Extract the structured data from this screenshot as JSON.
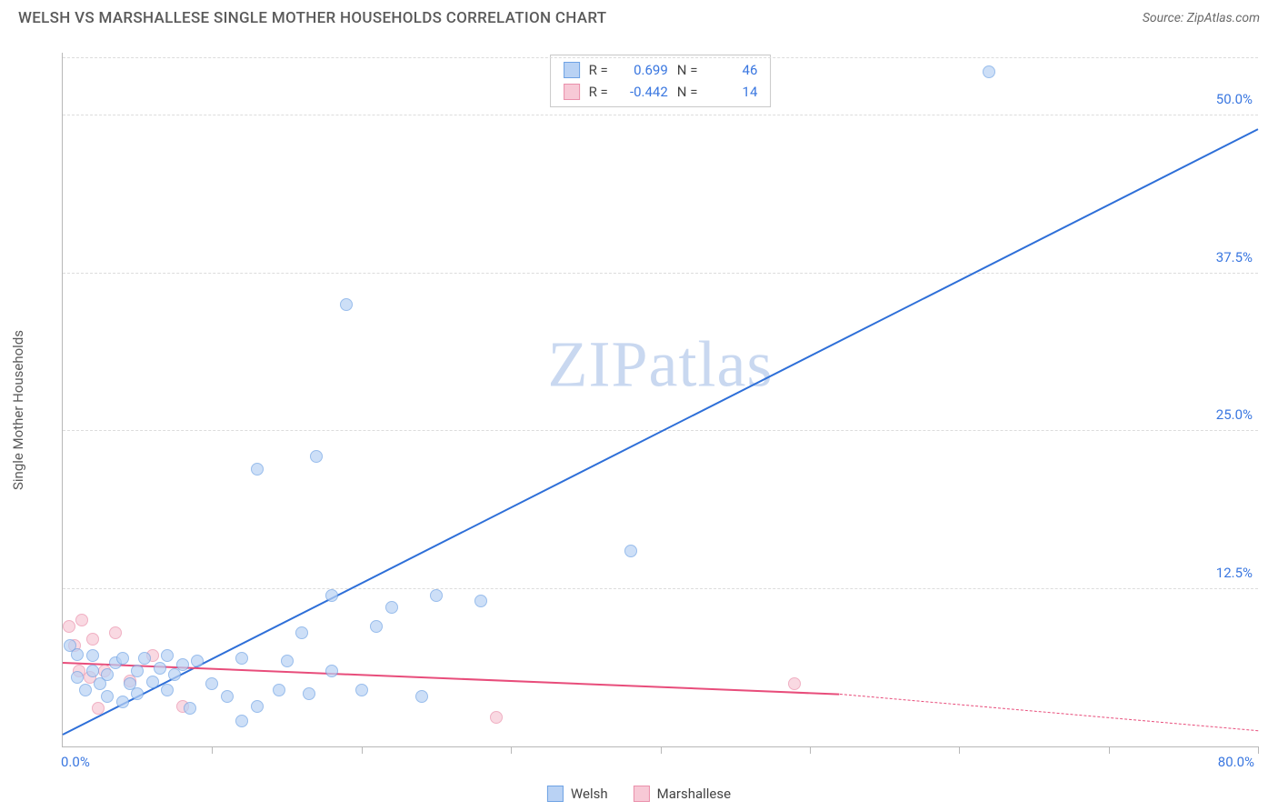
{
  "title": "WELSH VS MARSHALLESE SINGLE MOTHER HOUSEHOLDS CORRELATION CHART",
  "source": "Source: ZipAtlas.com",
  "ylabel": "Single Mother Households",
  "watermark_a": "ZIP",
  "watermark_b": "atlas",
  "chart": {
    "type": "scatter",
    "xlim": [
      0,
      80
    ],
    "ylim": [
      0,
      55
    ],
    "x_origin_label": "0.0%",
    "x_max_label": "80.0%",
    "y_ticks": [
      12.5,
      25.0,
      37.5,
      50.0
    ],
    "y_tick_labels": [
      "12.5%",
      "25.0%",
      "37.5%",
      "50.0%"
    ],
    "x_tick_positions": [
      10,
      20,
      30,
      40,
      50,
      60,
      70,
      80
    ],
    "grid_color": "#dcdcdc",
    "axis_color": "#b8b8b8",
    "tick_label_color": "#3a77e0",
    "background_color": "#ffffff",
    "marker_size": 14
  },
  "series": {
    "welsh": {
      "label": "Welsh",
      "fill": "#b9d2f4",
      "stroke": "#6ea2e4",
      "line_color": "#2e6fd8",
      "R": "0.699",
      "N": "46",
      "trend": {
        "x1": 0,
        "y1": 1.0,
        "x2": 80,
        "y2": 49.0
      },
      "points": [
        [
          0.5,
          8.0
        ],
        [
          1.0,
          5.5
        ],
        [
          1.0,
          7.3
        ],
        [
          1.5,
          4.5
        ],
        [
          2.0,
          6.0
        ],
        [
          2.0,
          7.2
        ],
        [
          2.5,
          5.0
        ],
        [
          3.0,
          4.0
        ],
        [
          3.0,
          5.7
        ],
        [
          3.5,
          6.6
        ],
        [
          4.0,
          3.5
        ],
        [
          4.0,
          7.0
        ],
        [
          4.5,
          5.0
        ],
        [
          5.0,
          4.2
        ],
        [
          5.0,
          6.0
        ],
        [
          5.5,
          7.0
        ],
        [
          6.0,
          5.1
        ],
        [
          6.5,
          6.2
        ],
        [
          7.0,
          4.5
        ],
        [
          7.0,
          7.2
        ],
        [
          7.5,
          5.7
        ],
        [
          8.0,
          6.5
        ],
        [
          8.5,
          3.0
        ],
        [
          9.0,
          6.8
        ],
        [
          10.0,
          5.0
        ],
        [
          11.0,
          4.0
        ],
        [
          12.0,
          7.0
        ],
        [
          12.0,
          2.0
        ],
        [
          13.0,
          3.2
        ],
        [
          13.0,
          22.0
        ],
        [
          14.5,
          4.5
        ],
        [
          15.0,
          6.8
        ],
        [
          16.0,
          9.0
        ],
        [
          16.5,
          4.2
        ],
        [
          17.0,
          23.0
        ],
        [
          18.0,
          6.0
        ],
        [
          18.0,
          12.0
        ],
        [
          19.0,
          35.0
        ],
        [
          20.0,
          4.5
        ],
        [
          21.0,
          9.5
        ],
        [
          22.0,
          11.0
        ],
        [
          24.0,
          4.0
        ],
        [
          25.0,
          12.0
        ],
        [
          28.0,
          11.5
        ],
        [
          38.0,
          15.5
        ],
        [
          62.0,
          53.5
        ]
      ]
    },
    "marshallese": {
      "label": "Marshallese",
      "fill": "#f7c9d6",
      "stroke": "#ea90ab",
      "line_color": "#e84d7b",
      "R": "-0.442",
      "N": "14",
      "trend_solid": {
        "x1": 0,
        "y1": 6.7,
        "x2": 52,
        "y2": 4.2
      },
      "trend_dash": {
        "x1": 52,
        "y1": 4.2,
        "x2": 80,
        "y2": 1.3
      },
      "points": [
        [
          0.4,
          9.5
        ],
        [
          0.8,
          8.0
        ],
        [
          1.1,
          6.0
        ],
        [
          1.3,
          10.0
        ],
        [
          1.8,
          5.5
        ],
        [
          2.0,
          8.5
        ],
        [
          2.4,
          3.0
        ],
        [
          2.8,
          6.0
        ],
        [
          3.5,
          9.0
        ],
        [
          4.5,
          5.2
        ],
        [
          6.0,
          7.2
        ],
        [
          8.0,
          3.2
        ],
        [
          29.0,
          2.3
        ],
        [
          49.0,
          5.0
        ]
      ]
    }
  },
  "legend_labels": {
    "welsh": "Welsh",
    "marshallese": "Marshallese"
  },
  "stat_labels": {
    "R": "R =",
    "N": "N ="
  }
}
